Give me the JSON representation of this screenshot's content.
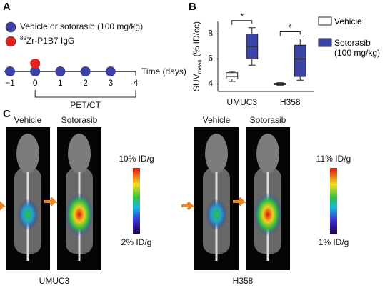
{
  "panel_a": {
    "letter": "A",
    "legend": [
      {
        "color": "#3b43a6",
        "text": "Vehicle or sotorasib (100 mg/kg)"
      },
      {
        "color": "#e0211f",
        "sup": "89",
        "text": "Zr-P1B7 IgG"
      }
    ],
    "days": [
      {
        "value": -1,
        "label": "−1"
      },
      0,
      1,
      2,
      3,
      4
    ],
    "time_label": "Time (days)",
    "imaging_label": "PET/CT"
  },
  "chart_data": {
    "type": "box",
    "letter": "B",
    "y_label": {
      "main": "SUV",
      "sub": "mean",
      "unit": "(% ID/cc)"
    },
    "categories": [
      "UMUC3",
      "H358"
    ],
    "ylim": [
      3.4,
      9
    ],
    "yticks": [
      4,
      6,
      8
    ],
    "annotations": [
      "*",
      "*"
    ],
    "series": [
      {
        "name": "Vehicle",
        "color": "#ffffff",
        "values": [
          {
            "min": 4.2,
            "q1": 4.4,
            "median": 4.6,
            "q3": 4.9,
            "max": 5.0
          },
          {
            "min": 3.9,
            "q1": 3.95,
            "median": 4.0,
            "q3": 4.05,
            "max": 4.1
          }
        ]
      },
      {
        "name": "Sotorasib (100 mg/kg)",
        "color": "#3b43a6",
        "values": [
          {
            "min": 5.5,
            "q1": 6.0,
            "median": 7.0,
            "q3": 8.0,
            "max": 8.5
          },
          {
            "min": 4.3,
            "q1": 4.6,
            "median": 6.0,
            "q3": 7.1,
            "max": 7.6
          }
        ]
      }
    ]
  },
  "panel_c": {
    "letter": "C",
    "groups": [
      {
        "name": "UMUC3",
        "conditions": [
          "Vehicle",
          "Sotorasib"
        ],
        "scale_max": "10% ID/g",
        "scale_min": "2% ID/g"
      },
      {
        "name": "H358",
        "conditions": [
          "Vehicle",
          "Sotorasib"
        ],
        "scale_max": "11% ID/g",
        "scale_min": "1% ID/g"
      }
    ]
  }
}
